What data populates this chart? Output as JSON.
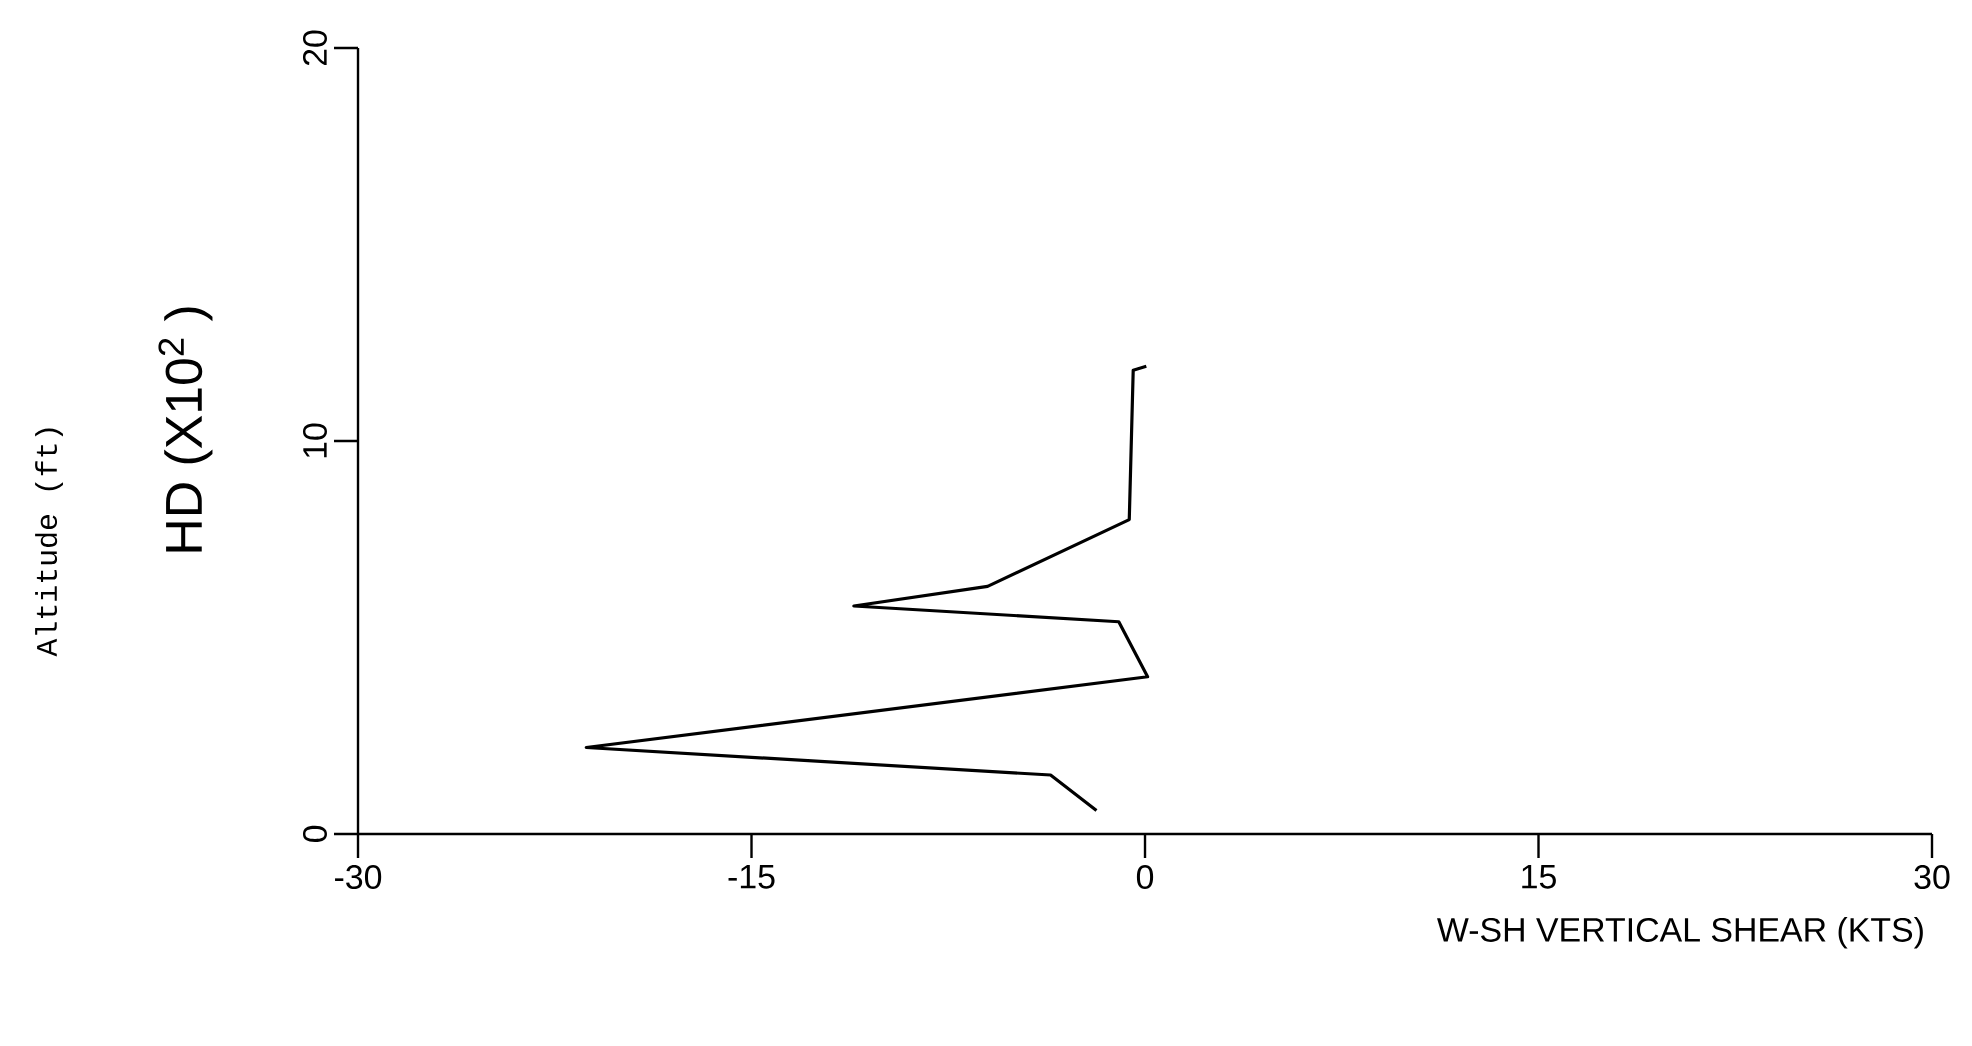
{
  "chart_data": {
    "type": "line",
    "xlabel": "W-SH VERTICAL SHEAR (KTS)",
    "ylabel": "HD (X10$^{2}$ )",
    "annotations": [
      "Altitude (ft)"
    ],
    "series": [
      {
        "color": "#000000",
        "x": [
          -1.85,
          -3.6,
          -21.3,
          0.1,
          -1.0,
          -11.1,
          -6.0,
          -0.6,
          -0.45,
          0.05
        ],
        "values": [
          0.6,
          1.5,
          2.2,
          4.0,
          5.4,
          5.8,
          6.3,
          8.0,
          11.8,
          11.9
        ]
      }
    ],
    "xlim": [
      -30,
      30
    ],
    "xticks": [
      -30,
      -15,
      0,
      15,
      30
    ],
    "ylim": [
      0,
      20
    ],
    "yticks": [
      0,
      10,
      20
    ],
    "marker": "none",
    "line_style": "solid"
  }
}
